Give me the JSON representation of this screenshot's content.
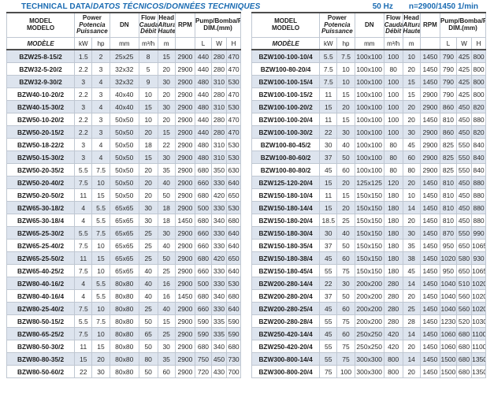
{
  "page": {
    "title_en": "TECHNICAL DATA/",
    "title_intl": "DATOS TÉCNICOS/DONNÉES TECHNIQUES",
    "frequency": "50 Hz",
    "speed": "n=2900/1450 1/min"
  },
  "colors": {
    "accent_blue": "#1a6bb2",
    "row_shade": "#dde4ee",
    "border_light": "#bfc7d2",
    "border_dark": "#4d4d4d"
  },
  "header": {
    "model": {
      "en": "MODEL",
      "es": "MODELO",
      "fr": "MODÈLE"
    },
    "power": {
      "en": "Power",
      "es": "Potencia",
      "fr": "Puissance",
      "u1": "kW",
      "u2": "hp"
    },
    "dn": {
      "label": "DN",
      "unit": "mm"
    },
    "flow": {
      "en": "Flow",
      "es": "Caudal",
      "fr": "Débit",
      "unit": "m³/h"
    },
    "head": {
      "en": "Head",
      "es": "Altura",
      "fr": "Hauteur",
      "unit": "m"
    },
    "rpm": {
      "label": "RPM",
      "unit": ""
    },
    "dim": {
      "en": "Pump",
      "rest": "/Bomba/Pompe",
      "sub": "DIM.(mm)",
      "u1": "L",
      "u2": "W",
      "u3": "H"
    }
  },
  "left_table": {
    "rows": [
      [
        "BZW25-8-15/2",
        "1.5",
        "2",
        "25x25",
        "8",
        "15",
        "2900",
        "440",
        "280",
        "470"
      ],
      [
        "BZW32-5-20/2",
        "2.2",
        "3",
        "32x32",
        "5",
        "20",
        "2900",
        "440",
        "280",
        "470"
      ],
      [
        "BZW32-9-30/2",
        "3",
        "4",
        "32x32",
        "9",
        "30",
        "2900",
        "480",
        "310",
        "530"
      ],
      [
        "BZW40-10-20/2",
        "2.2",
        "3",
        "40x40",
        "10",
        "20",
        "2900",
        "440",
        "280",
        "470"
      ],
      [
        "BZW40-15-30/2",
        "3",
        "4",
        "40x40",
        "15",
        "30",
        "2900",
        "480",
        "310",
        "530"
      ],
      [
        "BZW50-10-20/2",
        "2.2",
        "3",
        "50x50",
        "10",
        "20",
        "2900",
        "440",
        "280",
        "470"
      ],
      [
        "BZW50-20-15/2",
        "2.2",
        "3",
        "50x50",
        "20",
        "15",
        "2900",
        "440",
        "280",
        "470"
      ],
      [
        "BZW50-18-22/2",
        "3",
        "4",
        "50x50",
        "18",
        "22",
        "2900",
        "480",
        "310",
        "530"
      ],
      [
        "BZW50-15-30/2",
        "3",
        "4",
        "50x50",
        "15",
        "30",
        "2900",
        "480",
        "310",
        "530"
      ],
      [
        "BZW50-20-35/2",
        "5.5",
        "7.5",
        "50x50",
        "20",
        "35",
        "2900",
        "680",
        "350",
        "630"
      ],
      [
        "BZW50-20-40/2",
        "7.5",
        "10",
        "50x50",
        "20",
        "40",
        "2900",
        "660",
        "330",
        "640"
      ],
      [
        "BZW50-20-50/2",
        "11",
        "15",
        "50x50",
        "20",
        "50",
        "2900",
        "680",
        "420",
        "650"
      ],
      [
        "BZW65-30-18/2",
        "4",
        "5.5",
        "65x65",
        "30",
        "18",
        "2900",
        "500",
        "330",
        "530"
      ],
      [
        "BZW65-30-18/4",
        "4",
        "5.5",
        "65x65",
        "30",
        "18",
        "1450",
        "680",
        "340",
        "680"
      ],
      [
        "BZW65-25-30/2",
        "5.5",
        "7.5",
        "65x65",
        "25",
        "30",
        "2900",
        "660",
        "330",
        "640"
      ],
      [
        "BZW65-25-40/2",
        "7.5",
        "10",
        "65x65",
        "25",
        "40",
        "2900",
        "660",
        "330",
        "640"
      ],
      [
        "BZW65-25-50/2",
        "11",
        "15",
        "65x65",
        "25",
        "50",
        "2900",
        "680",
        "420",
        "650"
      ],
      [
        "BZW65-40-25/2",
        "7.5",
        "10",
        "65x65",
        "40",
        "25",
        "2900",
        "660",
        "330",
        "640"
      ],
      [
        "BZW80-40-16/2",
        "4",
        "5.5",
        "80x80",
        "40",
        "16",
        "2900",
        "500",
        "330",
        "530"
      ],
      [
        "BZW80-40-16/4",
        "4",
        "5.5",
        "80x80",
        "40",
        "16",
        "1450",
        "680",
        "340",
        "680"
      ],
      [
        "BZW80-25-40/2",
        "7.5",
        "10",
        "80x80",
        "25",
        "40",
        "2900",
        "660",
        "330",
        "640"
      ],
      [
        "BZW80-50-15/2",
        "5.5",
        "7.5",
        "80x80",
        "50",
        "15",
        "2900",
        "590",
        "335",
        "590"
      ],
      [
        "BZW80-65-25/2",
        "7.5",
        "10",
        "80x80",
        "65",
        "25",
        "2900",
        "590",
        "335",
        "590"
      ],
      [
        "BZW80-50-30/2",
        "11",
        "15",
        "80x80",
        "50",
        "30",
        "2900",
        "680",
        "340",
        "680"
      ],
      [
        "BZW80-80-35/2",
        "15",
        "20",
        "80x80",
        "80",
        "35",
        "2900",
        "750",
        "450",
        "730"
      ],
      [
        "BZW80-50-60/2",
        "22",
        "30",
        "80x80",
        "50",
        "60",
        "2900",
        "720",
        "430",
        "700"
      ]
    ]
  },
  "right_table": {
    "rows": [
      [
        "BZW100-100-10/4",
        "5.5",
        "7.5",
        "100x100",
        "100",
        "10",
        "1450",
        "790",
        "425",
        "800"
      ],
      [
        "BZW100-80-20/4",
        "7.5",
        "10",
        "100x100",
        "80",
        "20",
        "1450",
        "790",
        "425",
        "800"
      ],
      [
        "BZW100-100-15/4",
        "7.5",
        "10",
        "100x100",
        "100",
        "15",
        "1450",
        "790",
        "425",
        "800"
      ],
      [
        "BZW100-100-15/2",
        "11",
        "15",
        "100x100",
        "100",
        "15",
        "2900",
        "790",
        "425",
        "800"
      ],
      [
        "BZW100-100-20/2",
        "15",
        "20",
        "100x100",
        "100",
        "20",
        "2900",
        "860",
        "450",
        "820"
      ],
      [
        "BZW100-100-20/4",
        "11",
        "15",
        "100x100",
        "100",
        "20",
        "1450",
        "810",
        "450",
        "880"
      ],
      [
        "BZW100-100-30/2",
        "22",
        "30",
        "100x100",
        "100",
        "30",
        "2900",
        "860",
        "450",
        "820"
      ],
      [
        "BZW100-80-45/2",
        "30",
        "40",
        "100x100",
        "80",
        "45",
        "2900",
        "825",
        "550",
        "840"
      ],
      [
        "BZW100-80-60/2",
        "37",
        "50",
        "100x100",
        "80",
        "60",
        "2900",
        "825",
        "550",
        "840"
      ],
      [
        "BZW100-80-80/2",
        "45",
        "60",
        "100x100",
        "80",
        "80",
        "2900",
        "825",
        "550",
        "840"
      ],
      [
        "BZW125-120-20/4",
        "15",
        "20",
        "125x125",
        "120",
        "20",
        "1450",
        "810",
        "450",
        "880"
      ],
      [
        "BZW150-180-10/4",
        "11",
        "15",
        "150x150",
        "180",
        "10",
        "1450",
        "810",
        "450",
        "880"
      ],
      [
        "BZW150-180-14/4",
        "15",
        "20",
        "150x150",
        "180",
        "14",
        "1450",
        "810",
        "450",
        "880"
      ],
      [
        "BZW150-180-20/4",
        "18.5",
        "25",
        "150x150",
        "180",
        "20",
        "1450",
        "810",
        "450",
        "880"
      ],
      [
        "BZW150-180-30/4",
        "30",
        "40",
        "150x150",
        "180",
        "30",
        "1450",
        "870",
        "550",
        "990"
      ],
      [
        "BZW150-180-35/4",
        "37",
        "50",
        "150x150",
        "180",
        "35",
        "1450",
        "950",
        "650",
        "1065"
      ],
      [
        "BZW150-180-38/4",
        "45",
        "60",
        "150x150",
        "180",
        "38",
        "1450",
        "1020",
        "580",
        "930"
      ],
      [
        "BZW150-180-45/4",
        "55",
        "75",
        "150x150",
        "180",
        "45",
        "1450",
        "950",
        "650",
        "1065"
      ],
      [
        "BZW200-280-14/4",
        "22",
        "30",
        "200x200",
        "280",
        "14",
        "1450",
        "1040",
        "510",
        "1020"
      ],
      [
        "BZW200-280-20/4",
        "37",
        "50",
        "200x200",
        "280",
        "20",
        "1450",
        "1040",
        "560",
        "1020"
      ],
      [
        "BZW200-280-25/4",
        "45",
        "60",
        "200x200",
        "280",
        "25",
        "1450",
        "1040",
        "560",
        "1020"
      ],
      [
        "BZW200-280-28/4",
        "55",
        "75",
        "200x200",
        "280",
        "28",
        "1450",
        "1230",
        "520",
        "1030"
      ],
      [
        "BZW250-420-14/4",
        "45",
        "60",
        "250x250",
        "420",
        "14",
        "1450",
        "1060",
        "680",
        "1100"
      ],
      [
        "BZW250-420-20/4",
        "55",
        "75",
        "250x250",
        "420",
        "20",
        "1450",
        "1060",
        "680",
        "1100"
      ],
      [
        "BZW300-800-14/4",
        "55",
        "75",
        "300x300",
        "800",
        "14",
        "1450",
        "1500",
        "680",
        "1350"
      ],
      [
        "BZW300-800-20/4",
        "75",
        "100",
        "300x300",
        "800",
        "20",
        "1450",
        "1500",
        "680",
        "1350"
      ]
    ]
  }
}
